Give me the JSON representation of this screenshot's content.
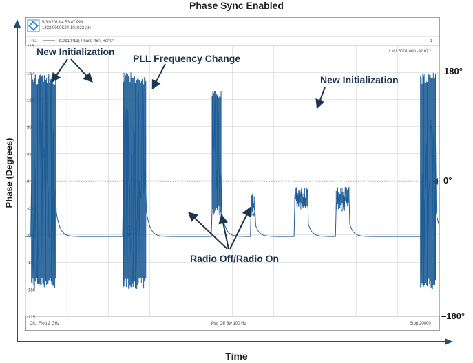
{
  "title": "Phase Sync Enabled",
  "xlabel": "Time",
  "ylabel": "Phase (Degrees)",
  "colors": {
    "trace": "#1f5d96",
    "axis": "#1f4e79",
    "grid": "#c9c9c9",
    "annotation": "#1e3550"
  },
  "instrument": {
    "timestamp": "5/31/2018 4:53:47 PM",
    "serial": "1332.9000K24-101022-aH",
    "trace_label": "Trc1",
    "trace_desc": "b2/b1(P13)   Phase   45°/ Ref 0°",
    "channel_num": "1",
    "marker_readout": "• M1   5001.000   -92.67 °",
    "ref_tick": "0°",
    "bottom_left": "Ch1   Freq   2 GHz",
    "bottom_mid": "Pwr   Off   Bw   100 Hz",
    "bottom_right": "Stop   20000",
    "tick_labels": [
      "225",
      "180",
      "135",
      "90",
      "45",
      "0°",
      "-45",
      "-90",
      "-135",
      "-180",
      "-225"
    ],
    "marker_label": "M1"
  },
  "right_axis": {
    "top": "180°",
    "mid": "0°",
    "bottom": "–180°"
  },
  "annotations": {
    "new_init_left": "New Initialization",
    "pll_change": "PLL Frequency Change",
    "new_init_right": "New Initialization",
    "radio": "Radio Off/Radio On"
  },
  "chart_data": {
    "type": "line",
    "title": "Phase Sync Enabled",
    "xlabel": "Time",
    "ylabel": "Phase (Degrees)",
    "ylim": [
      -225,
      225
    ],
    "xlim": [
      0,
      20000
    ],
    "right_axis_ticks": [
      "180°",
      "0°",
      "–180°"
    ],
    "baseline_phase": -92.67,
    "events": [
      {
        "name": "New Initialization",
        "x_start": 300,
        "x_end": 1600,
        "phase_range": [
          -180,
          180
        ]
      },
      {
        "name": "New Initialization",
        "x_start": 5200,
        "x_end": 6400,
        "phase_range": [
          -180,
          180
        ]
      },
      {
        "name": "PLL Frequency Change",
        "x_start": 9900,
        "x_end": 10400,
        "phase_range": [
          -60,
          150
        ]
      },
      {
        "name": "Radio Off/Radio On",
        "x_start": 12000,
        "x_end": 12200,
        "phase_range": [
          -60,
          -20
        ]
      },
      {
        "name": "Radio Off/Radio On",
        "x_start": 14300,
        "x_end": 15000,
        "phase_range": [
          -50,
          -10
        ]
      },
      {
        "name": "Radio Off/Radio On",
        "x_start": 16500,
        "x_end": 17200,
        "phase_range": [
          -50,
          -10
        ]
      },
      {
        "name": "New Initialization",
        "x_start": 21000,
        "x_end": 21800,
        "phase_range": [
          -180,
          180
        ]
      }
    ],
    "marker": {
      "name": "M1",
      "x": 5001,
      "y": -92.67
    }
  }
}
